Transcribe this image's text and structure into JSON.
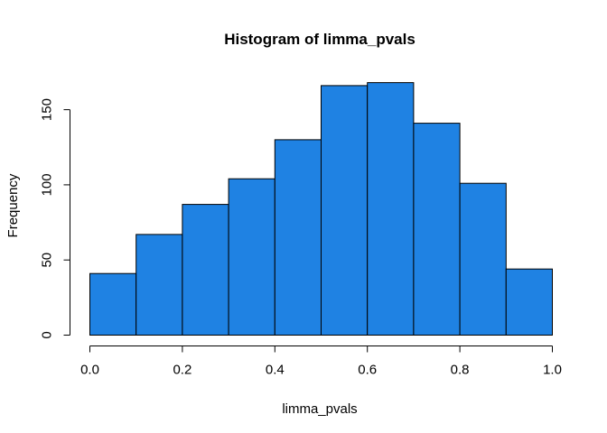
{
  "chart_data": {
    "type": "bar",
    "title": "Histogram of limma_pvals",
    "xlabel": "limma_pvals",
    "ylabel": "Frequency",
    "bin_edges": [
      0.0,
      0.1,
      0.2,
      0.3,
      0.4,
      0.5,
      0.6,
      0.7,
      0.8,
      0.9,
      1.0
    ],
    "values": [
      41,
      67,
      87,
      104,
      130,
      166,
      168,
      141,
      101,
      44
    ],
    "xlim": [
      0.0,
      1.0
    ],
    "ylim": [
      0,
      150
    ],
    "x_ticks": [
      0.0,
      0.2,
      0.4,
      0.6,
      0.8,
      1.0
    ],
    "x_tick_labels": [
      "0.0",
      "0.2",
      "0.4",
      "0.6",
      "0.8",
      "1.0"
    ],
    "y_ticks": [
      0,
      50,
      100,
      150
    ],
    "y_tick_labels": [
      "0",
      "50",
      "100",
      "150"
    ],
    "bar_color": "#1f82e3",
    "grid": false
  }
}
